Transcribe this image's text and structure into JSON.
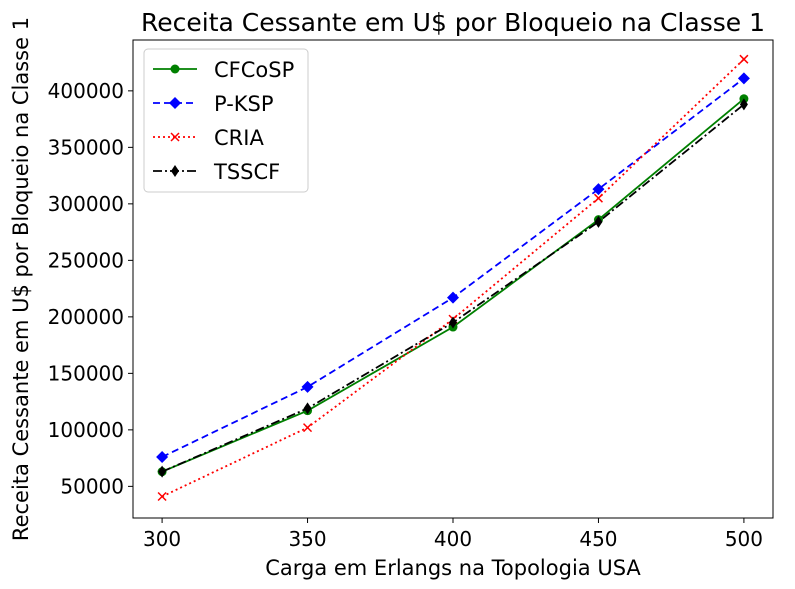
{
  "chart_data": {
    "type": "line",
    "title": "Receita Cessante em U$ por Bloqueio na Classe 1",
    "xlabel": "Carga em Erlangs na Topologia USA",
    "ylabel": "Receita Cessante em U$ por Bloqueio na Classe 1",
    "x": [
      300,
      350,
      400,
      450,
      500
    ],
    "xticks": [
      "300",
      "350",
      "400",
      "450",
      "500"
    ],
    "yticks": [
      50000,
      100000,
      150000,
      200000,
      250000,
      300000,
      350000,
      400000
    ],
    "ytick_labels": [
      "50000",
      "100000",
      "150000",
      "200000",
      "250000",
      "300000",
      "350000",
      "400000"
    ],
    "xlim": [
      290,
      510
    ],
    "ylim": [
      22000,
      445000
    ],
    "grid": false,
    "legend_position": "upper-left",
    "series": [
      {
        "name": "CFCoSP",
        "values": [
          63000,
          117000,
          191000,
          286000,
          393000
        ],
        "color": "#008000",
        "linestyle": "solid",
        "marker": "circle"
      },
      {
        "name": "P-KSP",
        "values": [
          76000,
          138000,
          217000,
          313000,
          411000
        ],
        "color": "#0000ff",
        "linestyle": "dashed",
        "marker": "diamond"
      },
      {
        "name": "CRIA",
        "values": [
          41000,
          102000,
          198000,
          305000,
          428000
        ],
        "color": "#ff0000",
        "linestyle": "dotted",
        "marker": "x"
      },
      {
        "name": "TSSCF",
        "values": [
          63000,
          119000,
          195000,
          284000,
          388000
        ],
        "color": "#000000",
        "linestyle": "dashdot",
        "marker": "thin-diamond"
      }
    ]
  }
}
